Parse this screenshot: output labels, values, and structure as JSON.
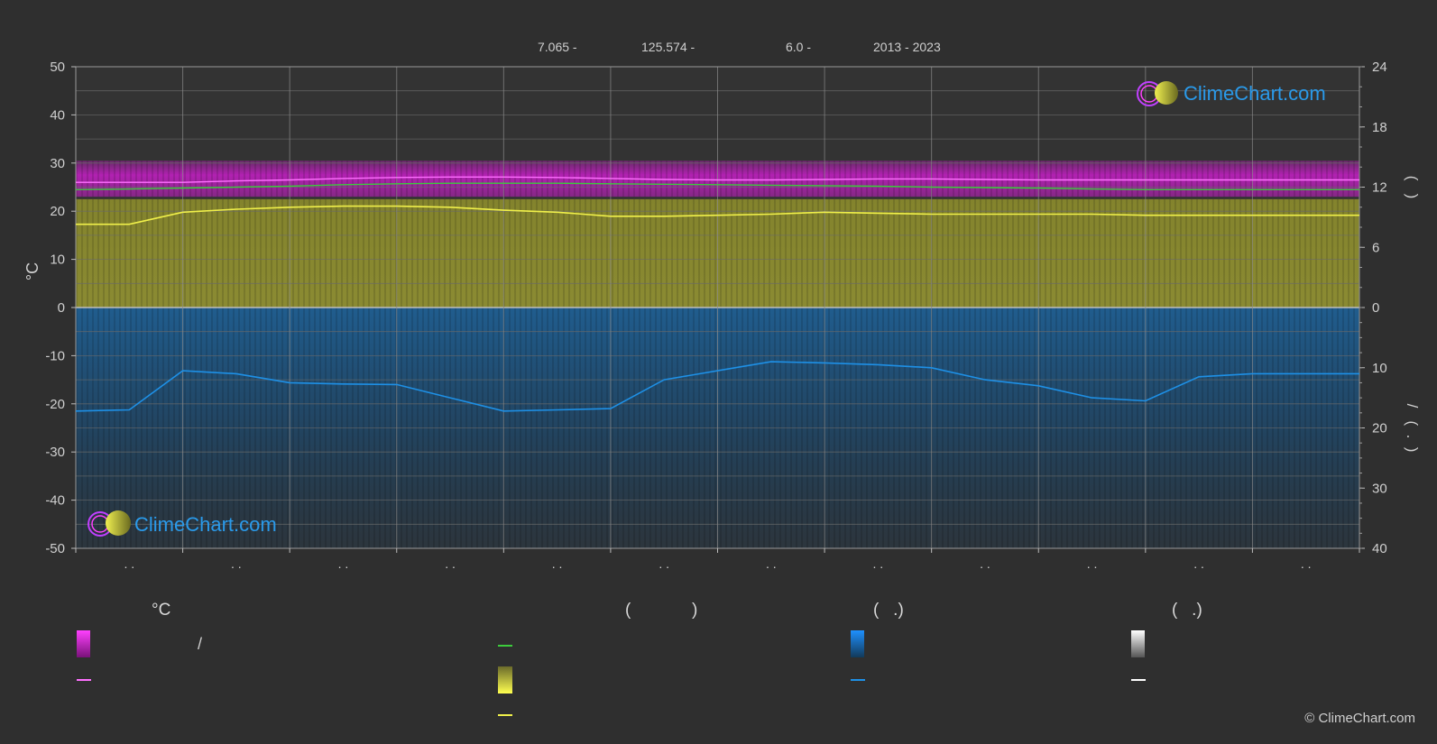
{
  "header": {
    "lat": "7.065 -",
    "lon": "125.574 -",
    "elev": "6.0 -",
    "years": "2013 - 2023"
  },
  "logo_text": "ClimeChart.com",
  "copyright": "© ClimeChart.com",
  "legend": {
    "col1_head": "°C",
    "col1_slash": "/",
    "col2_head_open": "(",
    "col2_head_close": ")",
    "col3_head": "(   .)",
    "col4_head": "(   .)"
  },
  "colors": {
    "background": "#2f2f2f",
    "temp_band": "#c81ec8",
    "temp_max_line": "#ff70ff",
    "dewpoint_line": "#3ccc3c",
    "sunshine_band": "#a8a832",
    "sunshine_line": "#f0f04a",
    "precip_band": "#1e5a8c",
    "precip_line": "#1e90e6",
    "snow_line": "#ffffff",
    "grid": "#6a6a6a",
    "logo_text": "#1e90e6"
  },
  "chart_data": {
    "type": "area",
    "title": "",
    "y_left_label": "°C",
    "y_left_ticks": [
      50,
      40,
      30,
      20,
      10,
      0,
      -10,
      -20,
      -30,
      -40,
      -50
    ],
    "y_right_ticks_upper": [
      24,
      18,
      12,
      6,
      0
    ],
    "y_right_ticks_lower": [
      10,
      20,
      30,
      40
    ],
    "y_right_label_upper": "(   )",
    "y_right_label_lower": "/   (  .  )",
    "x_tick_labels": [
      ". .",
      ". .",
      ". .",
      ". .",
      ". .",
      ". .",
      ". .",
      ". .",
      ". .",
      ". .",
      ". .",
      ". ."
    ],
    "x": [
      0,
      0.5,
      1,
      1.5,
      2,
      2.5,
      3,
      3.5,
      4,
      4.5,
      5,
      5.5,
      6,
      6.5,
      7,
      7.5,
      8,
      8.5,
      9,
      9.5,
      10,
      10.5,
      11,
      11.5,
      12
    ],
    "ylim_left": [
      -50,
      50
    ],
    "ylim_right_upper": [
      0,
      24
    ],
    "ylim_right_lower": [
      0,
      40
    ],
    "grid": true,
    "series": [
      {
        "key": "temp_max",
        "axis": "left_celsius",
        "values": [
          26.0,
          26.0,
          26.0,
          26.3,
          26.5,
          26.8,
          27.0,
          27.1,
          27.1,
          27.0,
          26.8,
          26.6,
          26.5,
          26.5,
          26.6,
          26.7,
          26.7,
          26.6,
          26.5,
          26.5,
          26.5,
          26.5,
          26.5,
          26.5,
          26.5
        ]
      },
      {
        "key": "dew_point",
        "axis": "left_celsius",
        "values": [
          24.5,
          24.6,
          24.8,
          25.0,
          25.2,
          25.5,
          25.7,
          25.8,
          25.8,
          25.8,
          25.7,
          25.6,
          25.5,
          25.4,
          25.3,
          25.2,
          25.0,
          24.9,
          24.8,
          24.6,
          24.5,
          24.5,
          24.5,
          24.5,
          24.5
        ]
      },
      {
        "key": "sunshine_hours",
        "axis": "right_hours",
        "values": [
          8.3,
          8.3,
          9.5,
          9.8,
          10.0,
          10.1,
          10.1,
          10.0,
          9.7,
          9.5,
          9.1,
          9.1,
          9.2,
          9.3,
          9.5,
          9.4,
          9.3,
          9.3,
          9.3,
          9.3,
          9.2,
          9.2,
          9.2,
          9.2,
          9.2
        ]
      },
      {
        "key": "precipitation_mm",
        "axis": "right_precip",
        "values": [
          17.2,
          17.0,
          10.5,
          11.0,
          12.5,
          12.7,
          12.8,
          15.0,
          17.2,
          17.0,
          16.8,
          12.0,
          10.5,
          9.0,
          9.2,
          9.5,
          10.0,
          12.0,
          13.0,
          15.0,
          15.5,
          11.5,
          11.0,
          11.0,
          11.0
        ]
      }
    ]
  }
}
